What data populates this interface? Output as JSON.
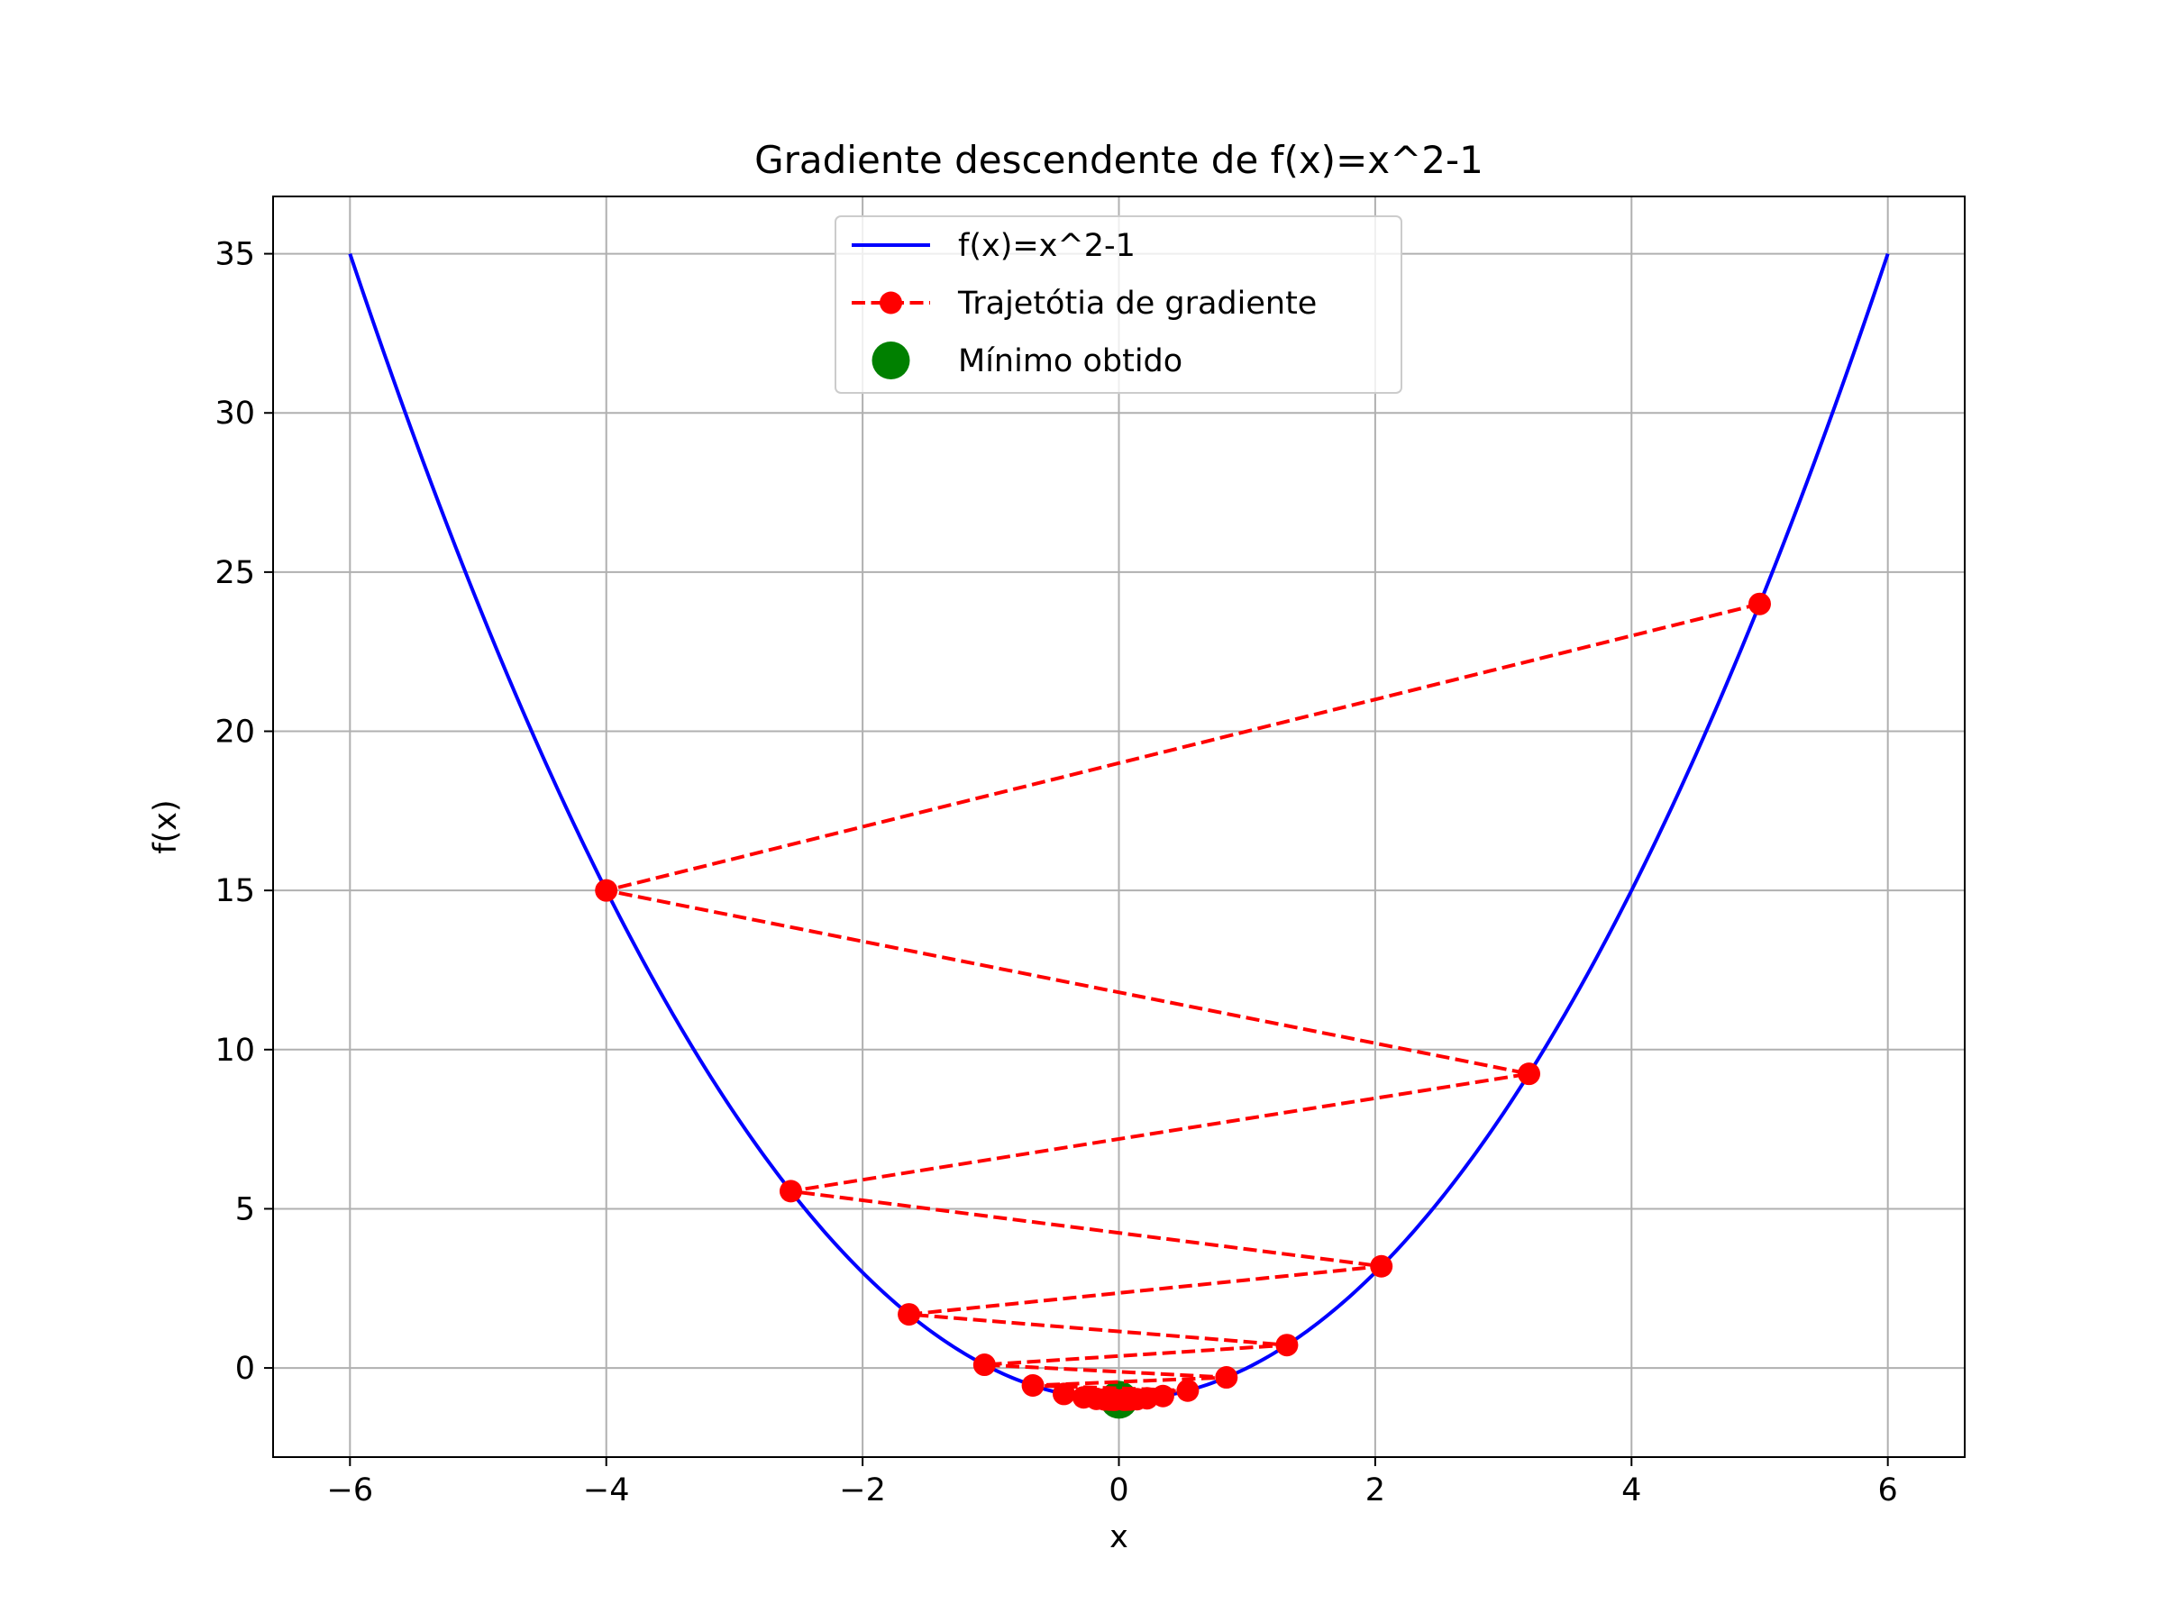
{
  "chart_data": {
    "type": "line",
    "title": "Gradiente descendente de f(x)=x^2-1",
    "xlabel": "x",
    "ylabel": "f(x)",
    "xlim": [
      -6.6,
      6.6
    ],
    "ylim": [
      -2.8,
      36.8
    ],
    "xticks": [
      -6,
      -4,
      -2,
      0,
      2,
      4,
      6
    ],
    "xtick_labels": [
      "−6",
      "−4",
      "−2",
      "0",
      "2",
      "4",
      "6"
    ],
    "yticks": [
      0,
      5,
      10,
      15,
      20,
      25,
      30,
      35
    ],
    "ytick_labels": [
      "0",
      "5",
      "10",
      "15",
      "20",
      "25",
      "30",
      "35"
    ],
    "grid": true,
    "legend_position": "upper-center",
    "series": [
      {
        "name": "f(x)=x^2-1",
        "kind": "curve",
        "function": "x^2-1",
        "x_range": [
          -6,
          6
        ],
        "color": "#0000ff"
      },
      {
        "name": "Trajetótia de gradiente",
        "kind": "dashed-line-markers",
        "color": "#ff0000",
        "x": [
          5,
          -4,
          3.2,
          -2.56,
          2.048,
          -1.638,
          1.311,
          -1.049,
          0.839,
          -0.671,
          0.537,
          -0.429,
          0.344,
          -0.275,
          0.22,
          -0.176,
          0.141,
          -0.113,
          0.09,
          -0.072,
          0.058,
          -0.046,
          0.037,
          -0.03
        ],
        "y": [
          24,
          15,
          9.24,
          5.554,
          3.194,
          1.684,
          0.718,
          0.1,
          -0.296,
          -0.55,
          -0.712,
          -0.816,
          -0.882,
          -0.924,
          -0.952,
          -0.969,
          -0.98,
          -0.987,
          -0.992,
          -0.995,
          -0.997,
          -0.998,
          -0.999,
          -0.999
        ]
      },
      {
        "name": "Mínimo obtido",
        "kind": "point",
        "color": "#008000",
        "x": [
          0
        ],
        "y": [
          -1
        ]
      }
    ]
  }
}
